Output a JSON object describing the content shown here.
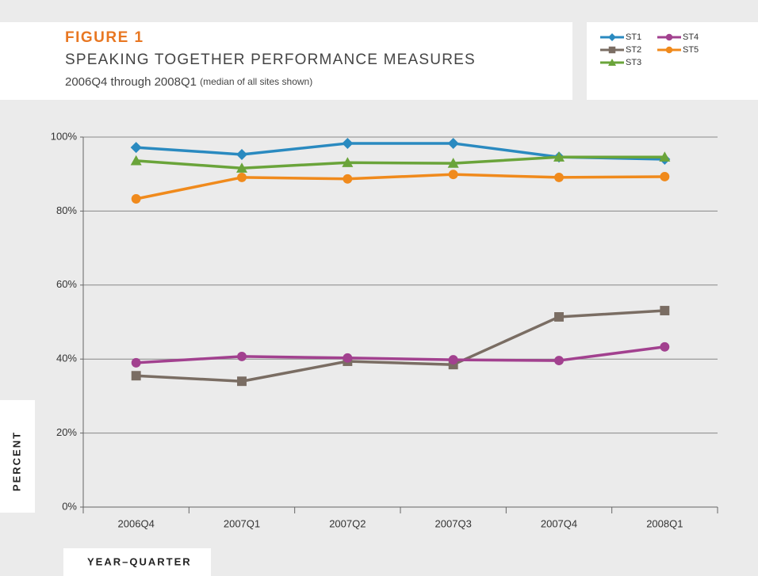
{
  "chart_data": {
    "type": "line",
    "label": "FIGURE 1",
    "title": "SPEAKING TOGETHER PERFORMANCE MEASURES",
    "subtitle": "2006Q4 through 2008Q1",
    "subtitle_note": "(median of all sites shown)",
    "xlabel": "YEAR–QUARTER",
    "ylabel": "PERCENT",
    "categories": [
      "2006Q4",
      "2007Q1",
      "2007Q2",
      "2007Q3",
      "2007Q4",
      "2008Q1"
    ],
    "series": [
      {
        "name": "ST1",
        "color": "#2a8ac0",
        "marker": "diamond",
        "values": [
          97.2,
          95.3,
          98.3,
          98.3,
          94.6,
          94.0
        ]
      },
      {
        "name": "ST2",
        "color": "#7a6d63",
        "marker": "square",
        "values": [
          35.5,
          34.0,
          39.4,
          38.5,
          51.4,
          53.1
        ]
      },
      {
        "name": "ST3",
        "color": "#6aa43a",
        "marker": "triangle",
        "values": [
          93.6,
          91.6,
          93.1,
          92.9,
          94.6,
          94.6
        ]
      },
      {
        "name": "ST4",
        "color": "#a2418f",
        "marker": "circle",
        "values": [
          39.0,
          40.7,
          40.3,
          39.8,
          39.6,
          43.3
        ]
      },
      {
        "name": "ST5",
        "color": "#f08a1c",
        "marker": "circle",
        "values": [
          83.3,
          89.1,
          88.7,
          89.9,
          89.1,
          89.3
        ]
      }
    ],
    "ylim": [
      0,
      100
    ],
    "yticks": [
      {
        "value": 0,
        "label": "0%"
      },
      {
        "value": 20,
        "label": "20%"
      },
      {
        "value": 40,
        "label": "40%"
      },
      {
        "value": 60,
        "label": "60%"
      },
      {
        "value": 80,
        "label": "80%"
      },
      {
        "value": 100,
        "label": "100%"
      }
    ],
    "grid": true
  }
}
